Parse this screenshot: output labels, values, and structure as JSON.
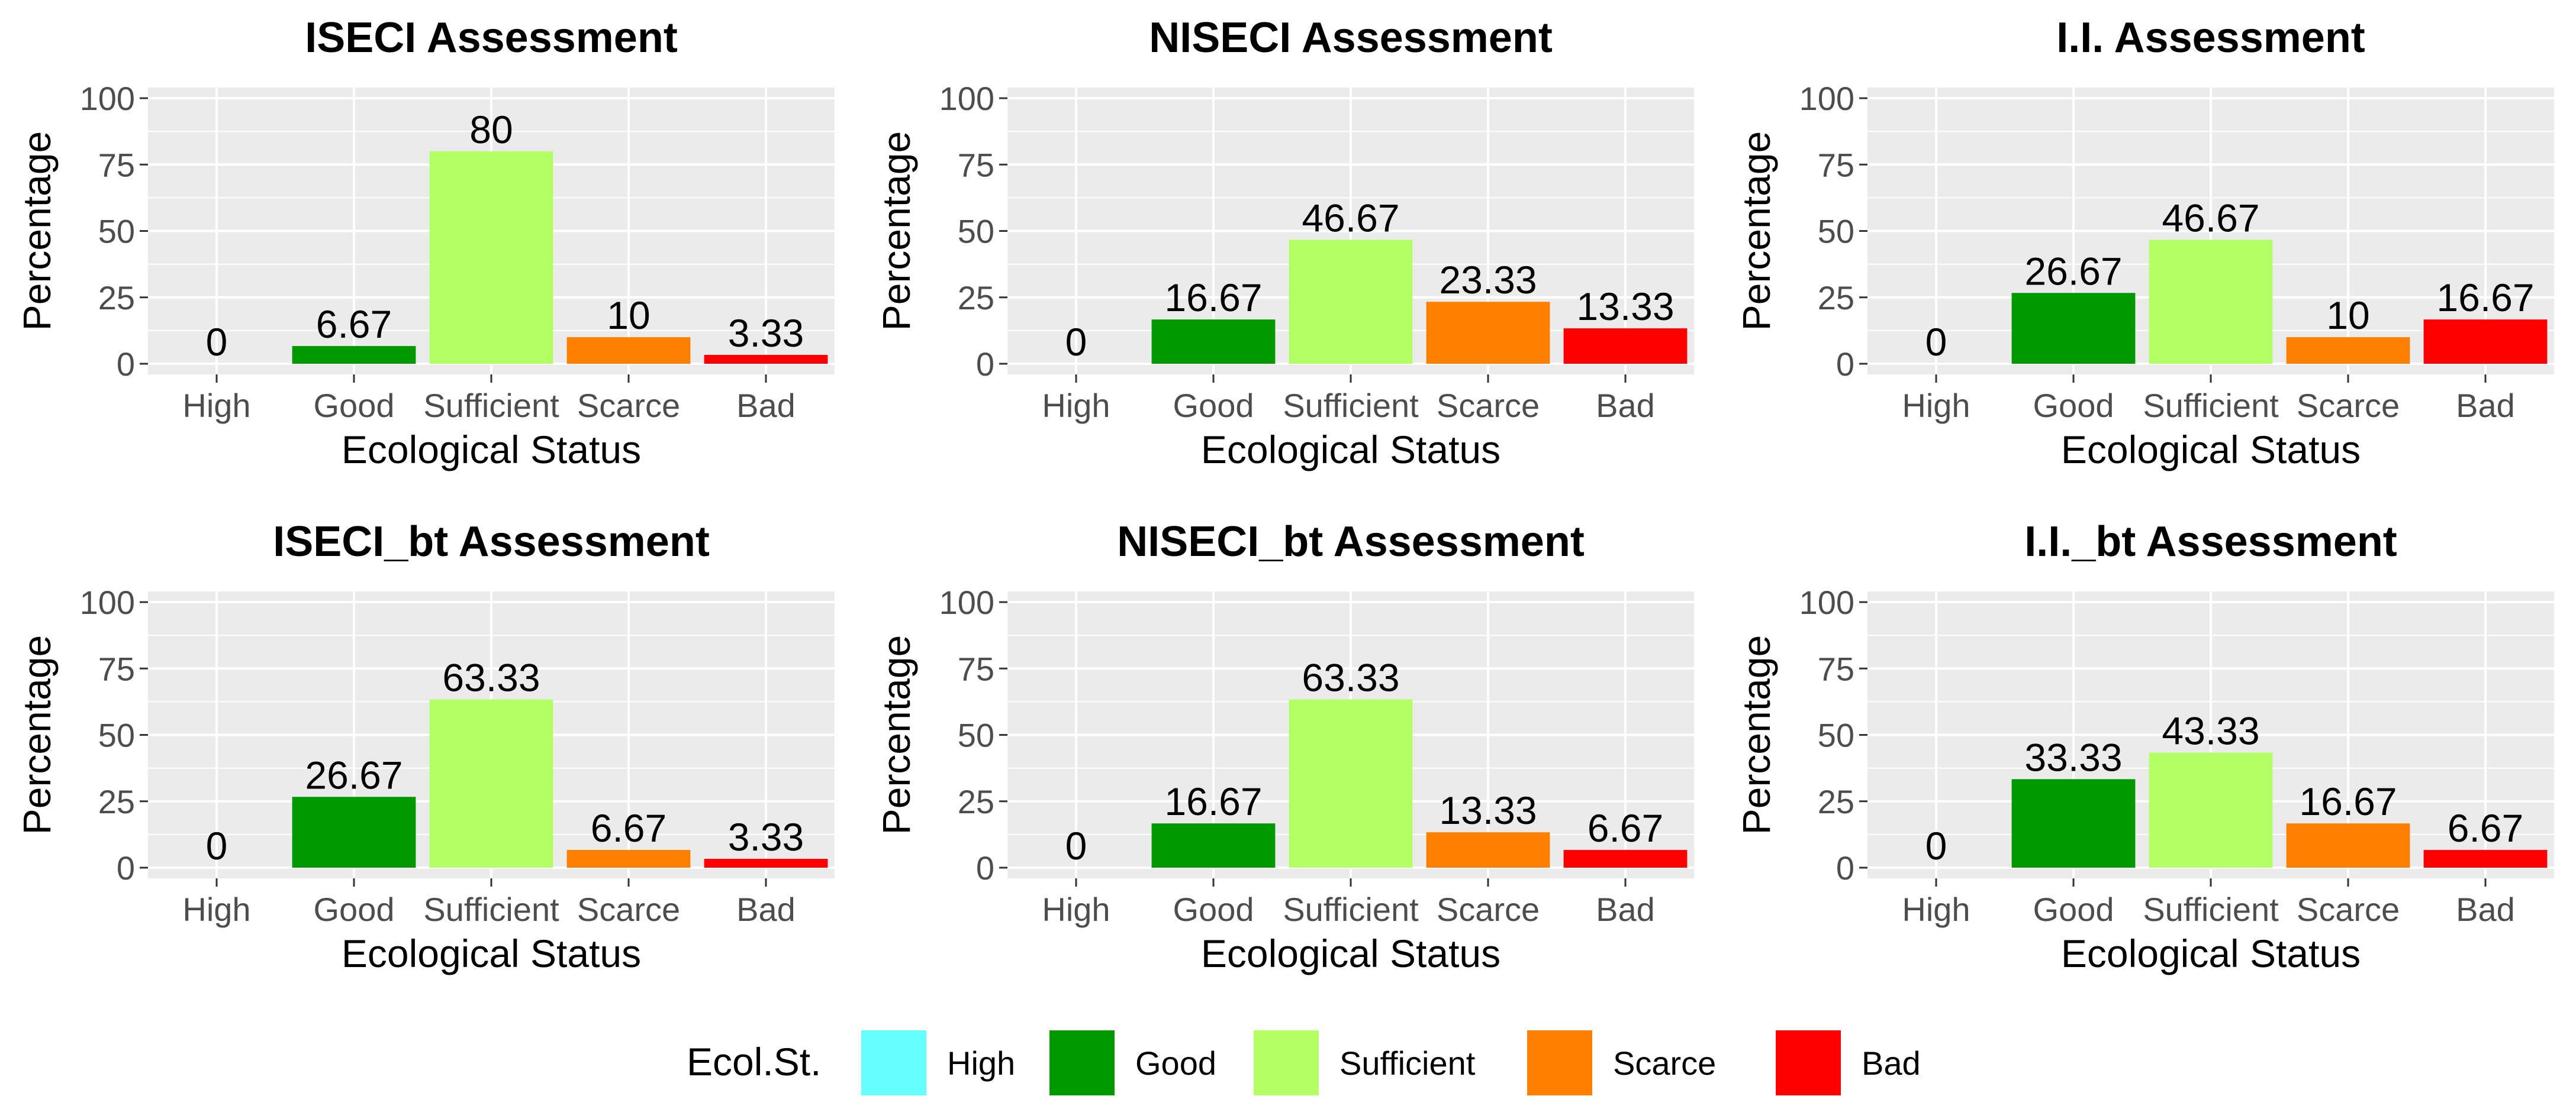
{
  "chart_data": [
    {
      "type": "bar",
      "title": "ISECI Assessment",
      "xlabel": "Ecological Status",
      "ylabel": "Percentage",
      "ylim": [
        0,
        100
      ],
      "yticks": [
        0,
        25,
        50,
        75,
        100
      ],
      "grid": true,
      "categories": [
        "High",
        "Good",
        "Sufficient",
        "Scarce",
        "Bad"
      ],
      "values": [
        0,
        6.67,
        80,
        10,
        3.33
      ],
      "value_labels": [
        "0",
        "6.67",
        "80",
        "10",
        "3.33"
      ]
    },
    {
      "type": "bar",
      "title": "NISECI Assessment",
      "xlabel": "Ecological Status",
      "ylabel": "Percentage",
      "ylim": [
        0,
        100
      ],
      "yticks": [
        0,
        25,
        50,
        75,
        100
      ],
      "grid": true,
      "categories": [
        "High",
        "Good",
        "Sufficient",
        "Scarce",
        "Bad"
      ],
      "values": [
        0,
        16.67,
        46.67,
        23.33,
        13.33
      ],
      "value_labels": [
        "0",
        "16.67",
        "46.67",
        "23.33",
        "13.33"
      ]
    },
    {
      "type": "bar",
      "title": "I.I. Assessment",
      "xlabel": "Ecological Status",
      "ylabel": "Percentage",
      "ylim": [
        0,
        100
      ],
      "yticks": [
        0,
        25,
        50,
        75,
        100
      ],
      "grid": true,
      "categories": [
        "High",
        "Good",
        "Sufficient",
        "Scarce",
        "Bad"
      ],
      "values": [
        0,
        26.67,
        46.67,
        10,
        16.67
      ],
      "value_labels": [
        "0",
        "26.67",
        "46.67",
        "10",
        "16.67"
      ]
    },
    {
      "type": "bar",
      "title": "ISECI_bt Assessment",
      "xlabel": "Ecological Status",
      "ylabel": "Percentage",
      "ylim": [
        0,
        100
      ],
      "yticks": [
        0,
        25,
        50,
        75,
        100
      ],
      "grid": true,
      "categories": [
        "High",
        "Good",
        "Sufficient",
        "Scarce",
        "Bad"
      ],
      "values": [
        0,
        26.67,
        63.33,
        6.67,
        3.33
      ],
      "value_labels": [
        "0",
        "26.67",
        "63.33",
        "6.67",
        "3.33"
      ]
    },
    {
      "type": "bar",
      "title": "NISECI_bt Assessment",
      "xlabel": "Ecological Status",
      "ylabel": "Percentage",
      "ylim": [
        0,
        100
      ],
      "yticks": [
        0,
        25,
        50,
        75,
        100
      ],
      "grid": true,
      "categories": [
        "High",
        "Good",
        "Sufficient",
        "Scarce",
        "Bad"
      ],
      "values": [
        0,
        16.67,
        63.33,
        13.33,
        6.67
      ],
      "value_labels": [
        "0",
        "16.67",
        "63.33",
        "13.33",
        "6.67"
      ]
    },
    {
      "type": "bar",
      "title": "I.I._bt Assessment",
      "xlabel": "Ecological Status",
      "ylabel": "Percentage",
      "ylim": [
        0,
        100
      ],
      "yticks": [
        0,
        25,
        50,
        75,
        100
      ],
      "grid": true,
      "categories": [
        "High",
        "Good",
        "Sufficient",
        "Scarce",
        "Bad"
      ],
      "values": [
        0,
        33.33,
        43.33,
        16.67,
        6.67
      ],
      "value_labels": [
        "0",
        "33.33",
        "43.33",
        "16.67",
        "6.67"
      ]
    }
  ],
  "legend": {
    "title": "Ecol.St.",
    "placement": "bottom",
    "items": [
      {
        "label": "High",
        "color": "#66FFFF"
      },
      {
        "label": "Good",
        "color": "#009900"
      },
      {
        "label": "Sufficient",
        "color": "#B3FF66"
      },
      {
        "label": "Scarce",
        "color": "#FF8000"
      },
      {
        "label": "Bad",
        "color": "#FF0000"
      }
    ]
  },
  "colors": {
    "panel_background": "#EBEBEB",
    "grid": "#FFFFFF",
    "tick_text": "#4D4D4D"
  }
}
